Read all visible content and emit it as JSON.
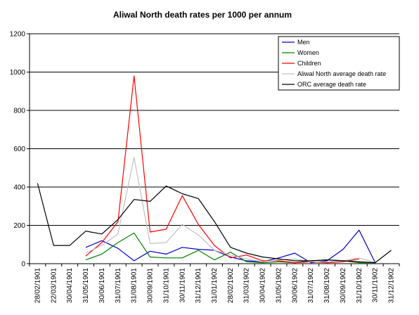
{
  "chart_data": {
    "type": "line",
    "title": "Aliwal North death rates per 1000 per annum",
    "xlabel": "",
    "ylabel": "",
    "ylim": [
      0,
      1200
    ],
    "yticks": [
      0,
      200,
      400,
      600,
      800,
      1000,
      1200
    ],
    "grid": "horizontal",
    "legend_position": "top-right",
    "categories": [
      "28/02/1901",
      "22/03/1901",
      "30/04/1901",
      "31/05/1901",
      "30/06/1901",
      "31/07/1901",
      "31/08/1901",
      "30/09/1901",
      "31/10/1901",
      "30/11/1901",
      "31/12/1901",
      "31/01/1902",
      "28/02/1902",
      "31/03/1902",
      "30/04/1902",
      "31/05/1902",
      "30/06/1902",
      "31/07/1902",
      "31/08/1902",
      "30/09/1902",
      "31/10/1902",
      "30/11/1902",
      "31/12/1902"
    ],
    "series": [
      {
        "name": "Men",
        "color": "#0000cc",
        "values": [
          null,
          null,
          null,
          85,
          120,
          80,
          15,
          65,
          50,
          85,
          75,
          70,
          35,
          15,
          10,
          30,
          55,
          5,
          15,
          75,
          175,
          5,
          null
        ]
      },
      {
        "name": "Women",
        "color": "#008000",
        "values": [
          null,
          null,
          null,
          20,
          50,
          110,
          160,
          35,
          30,
          30,
          70,
          20,
          60,
          10,
          5,
          10,
          5,
          15,
          20,
          15,
          5,
          5,
          null
        ]
      },
      {
        "name": "Children",
        "color": "#ff0000",
        "values": [
          null,
          null,
          null,
          40,
          110,
          220,
          980,
          165,
          180,
          355,
          205,
          95,
          30,
          45,
          15,
          15,
          5,
          10,
          5,
          10,
          25,
          null,
          null
        ]
      },
      {
        "name": "Aliwal North average death rate",
        "color": "#c0c0c0",
        "values": [
          null,
          null,
          null,
          55,
          95,
          155,
          555,
          105,
          110,
          205,
          150,
          70,
          45,
          25,
          10,
          20,
          25,
          10,
          10,
          15,
          30,
          5,
          null
        ]
      },
      {
        "name": "ORC average death rate",
        "color": "#000000",
        "values": [
          420,
          95,
          95,
          170,
          155,
          230,
          335,
          325,
          405,
          365,
          340,
          220,
          85,
          55,
          35,
          25,
          15,
          15,
          20,
          15,
          10,
          5,
          70
        ]
      }
    ]
  }
}
